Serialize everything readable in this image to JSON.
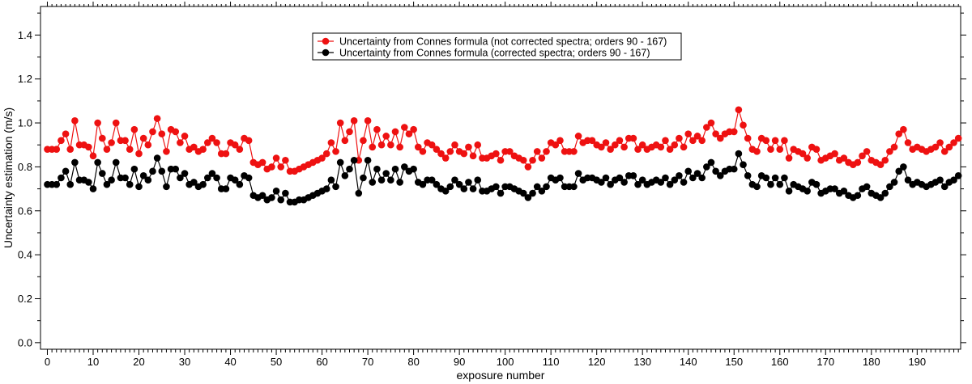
{
  "chart_data": {
    "type": "line",
    "xlabel": "exposure number",
    "ylabel": "Uncertainty estimation (m/s)",
    "xlim": [
      -1.5,
      199.5
    ],
    "ylim": [
      -0.03,
      1.53
    ],
    "x_ticks": [
      0,
      10,
      20,
      30,
      40,
      50,
      60,
      70,
      80,
      90,
      100,
      110,
      120,
      130,
      140,
      150,
      160,
      170,
      180,
      190
    ],
    "y_ticks": [
      0.0,
      0.2,
      0.4,
      0.6,
      0.8,
      1.0,
      1.2,
      1.4
    ],
    "y_tick_labels": [
      "0.0",
      "0.2",
      "0.4",
      "0.6",
      "0.8",
      "1.0",
      "1.2",
      "1.4"
    ],
    "grid": false,
    "legend_position": "top-center",
    "x": [
      0,
      1,
      2,
      3,
      4,
      5,
      6,
      7,
      8,
      9,
      10,
      11,
      12,
      13,
      14,
      15,
      16,
      17,
      18,
      19,
      20,
      21,
      22,
      23,
      24,
      25,
      26,
      27,
      28,
      29,
      30,
      31,
      32,
      33,
      34,
      35,
      36,
      37,
      38,
      39,
      40,
      41,
      42,
      43,
      44,
      45,
      46,
      47,
      48,
      49,
      50,
      51,
      52,
      53,
      54,
      55,
      56,
      57,
      58,
      59,
      60,
      61,
      62,
      63,
      64,
      65,
      66,
      67,
      68,
      69,
      70,
      71,
      72,
      73,
      74,
      75,
      76,
      77,
      78,
      79,
      80,
      81,
      82,
      83,
      84,
      85,
      86,
      87,
      88,
      89,
      90,
      91,
      92,
      93,
      94,
      95,
      96,
      97,
      98,
      99,
      100,
      101,
      102,
      103,
      104,
      105,
      106,
      107,
      108,
      109,
      110,
      111,
      112,
      113,
      114,
      115,
      116,
      117,
      118,
      119,
      120,
      121,
      122,
      123,
      124,
      125,
      126,
      127,
      128,
      129,
      130,
      131,
      132,
      133,
      134,
      135,
      136,
      137,
      138,
      139,
      140,
      141,
      142,
      143,
      144,
      145,
      146,
      147,
      148,
      149,
      150,
      151,
      152,
      153,
      154,
      155,
      156,
      157,
      158,
      159,
      160,
      161,
      162,
      163,
      164,
      165,
      166,
      167,
      168,
      169,
      170,
      171,
      172,
      173,
      174,
      175,
      176,
      177,
      178,
      179,
      180,
      181,
      182,
      183,
      184,
      185,
      186,
      187,
      188,
      189,
      190,
      191,
      192,
      193,
      194,
      195,
      196,
      197,
      198,
      199
    ],
    "series": [
      {
        "name": "Uncertainty from Connes formula (not corrected spectra; orders 90 - 167)",
        "color": "#ee1111",
        "values": [
          0.88,
          0.88,
          0.88,
          0.92,
          0.95,
          0.88,
          1.01,
          0.9,
          0.9,
          0.89,
          0.85,
          1.0,
          0.93,
          0.88,
          0.91,
          1.0,
          0.92,
          0.92,
          0.88,
          0.97,
          0.86,
          0.93,
          0.9,
          0.96,
          1.02,
          0.95,
          0.87,
          0.97,
          0.96,
          0.91,
          0.94,
          0.88,
          0.89,
          0.87,
          0.88,
          0.91,
          0.93,
          0.91,
          0.86,
          0.86,
          0.91,
          0.9,
          0.88,
          0.93,
          0.92,
          0.82,
          0.81,
          0.82,
          0.79,
          0.8,
          0.84,
          0.8,
          0.83,
          0.78,
          0.78,
          0.79,
          0.8,
          0.81,
          0.82,
          0.83,
          0.84,
          0.86,
          0.91,
          0.87,
          1.0,
          0.92,
          0.96,
          1.01,
          0.83,
          0.92,
          1.01,
          0.89,
          0.97,
          0.9,
          0.94,
          0.9,
          0.96,
          0.89,
          0.98,
          0.95,
          0.97,
          0.89,
          0.87,
          0.91,
          0.9,
          0.88,
          0.86,
          0.84,
          0.87,
          0.9,
          0.87,
          0.86,
          0.89,
          0.85,
          0.9,
          0.84,
          0.84,
          0.85,
          0.86,
          0.83,
          0.87,
          0.87,
          0.85,
          0.84,
          0.83,
          0.8,
          0.83,
          0.87,
          0.84,
          0.87,
          0.91,
          0.9,
          0.92,
          0.87,
          0.87,
          0.87,
          0.94,
          0.91,
          0.92,
          0.92,
          0.9,
          0.89,
          0.91,
          0.88,
          0.9,
          0.92,
          0.89,
          0.93,
          0.93,
          0.88,
          0.9,
          0.88,
          0.89,
          0.9,
          0.89,
          0.92,
          0.88,
          0.9,
          0.93,
          0.89,
          0.95,
          0.92,
          0.94,
          0.92,
          0.98,
          1.0,
          0.95,
          0.93,
          0.95,
          0.96,
          0.96,
          1.06,
          0.99,
          0.93,
          0.88,
          0.87,
          0.93,
          0.92,
          0.88,
          0.92,
          0.88,
          0.92,
          0.84,
          0.88,
          0.87,
          0.86,
          0.84,
          0.89,
          0.88,
          0.83,
          0.84,
          0.85,
          0.86,
          0.83,
          0.84,
          0.82,
          0.81,
          0.82,
          0.85,
          0.87,
          0.83,
          0.82,
          0.81,
          0.83,
          0.87,
          0.89,
          0.95,
          0.97,
          0.91,
          0.88,
          0.89,
          0.88,
          0.87,
          0.88,
          0.89,
          0.91,
          0.87,
          0.89,
          0.91,
          0.93
        ]
      },
      {
        "name": "Uncertainty from Connes formula (corrected spectra; orders 90 - 167)",
        "color": "#000000",
        "values": [
          0.72,
          0.72,
          0.72,
          0.75,
          0.78,
          0.72,
          0.82,
          0.74,
          0.74,
          0.73,
          0.7,
          0.82,
          0.77,
          0.72,
          0.74,
          0.82,
          0.75,
          0.75,
          0.72,
          0.79,
          0.71,
          0.76,
          0.74,
          0.78,
          0.84,
          0.78,
          0.71,
          0.79,
          0.79,
          0.75,
          0.77,
          0.72,
          0.73,
          0.71,
          0.72,
          0.75,
          0.77,
          0.75,
          0.7,
          0.7,
          0.75,
          0.74,
          0.72,
          0.76,
          0.75,
          0.67,
          0.66,
          0.67,
          0.65,
          0.66,
          0.69,
          0.65,
          0.68,
          0.64,
          0.64,
          0.65,
          0.65,
          0.66,
          0.67,
          0.68,
          0.69,
          0.7,
          0.74,
          0.71,
          0.82,
          0.76,
          0.79,
          0.83,
          0.68,
          0.75,
          0.83,
          0.73,
          0.79,
          0.74,
          0.77,
          0.74,
          0.79,
          0.73,
          0.8,
          0.78,
          0.79,
          0.73,
          0.72,
          0.74,
          0.74,
          0.72,
          0.7,
          0.69,
          0.71,
          0.74,
          0.72,
          0.7,
          0.73,
          0.7,
          0.74,
          0.69,
          0.69,
          0.7,
          0.71,
          0.68,
          0.71,
          0.71,
          0.7,
          0.69,
          0.68,
          0.66,
          0.68,
          0.71,
          0.69,
          0.71,
          0.75,
          0.74,
          0.75,
          0.71,
          0.71,
          0.71,
          0.77,
          0.74,
          0.75,
          0.75,
          0.74,
          0.73,
          0.75,
          0.72,
          0.74,
          0.75,
          0.73,
          0.76,
          0.76,
          0.72,
          0.74,
          0.72,
          0.73,
          0.74,
          0.73,
          0.75,
          0.72,
          0.74,
          0.76,
          0.73,
          0.78,
          0.75,
          0.77,
          0.75,
          0.8,
          0.82,
          0.78,
          0.76,
          0.78,
          0.79,
          0.79,
          0.86,
          0.81,
          0.76,
          0.72,
          0.71,
          0.76,
          0.75,
          0.72,
          0.75,
          0.72,
          0.75,
          0.69,
          0.72,
          0.71,
          0.7,
          0.69,
          0.73,
          0.72,
          0.68,
          0.69,
          0.7,
          0.7,
          0.68,
          0.69,
          0.67,
          0.66,
          0.67,
          0.7,
          0.71,
          0.68,
          0.67,
          0.66,
          0.68,
          0.71,
          0.73,
          0.78,
          0.8,
          0.74,
          0.72,
          0.73,
          0.72,
          0.71,
          0.72,
          0.73,
          0.74,
          0.71,
          0.73,
          0.74,
          0.76
        ]
      }
    ]
  }
}
